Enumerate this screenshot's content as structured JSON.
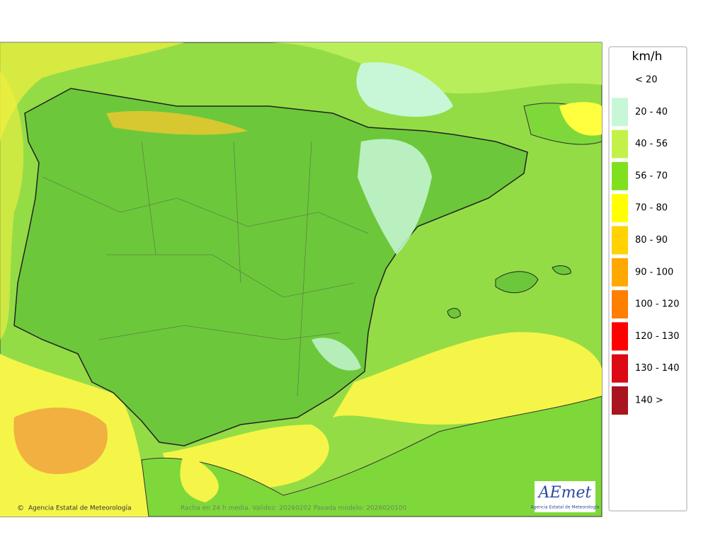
{
  "legend": {
    "title": "km/h",
    "items": [
      {
        "label": "< 20",
        "color": "#ffffff"
      },
      {
        "label": "20 - 40",
        "color": "#c8f7d8"
      },
      {
        "label": "40 - 56",
        "color": "#c2f24a"
      },
      {
        "label": "56 - 70",
        "color": "#7fe020"
      },
      {
        "label": "70 - 80",
        "color": "#ffff00"
      },
      {
        "label": "80 - 90",
        "color": "#ffd200"
      },
      {
        "label": "90 - 100",
        "color": "#ffa800"
      },
      {
        "label": "100 - 120",
        "color": "#ff7f00"
      },
      {
        "label": "120 - 130",
        "color": "#ff0000"
      },
      {
        "label": "130 - 140",
        "color": "#dc0a14"
      },
      {
        "label": "140 >",
        "color": "#a81420"
      }
    ]
  },
  "map": {
    "credit": "Agencia Estatal de Meteorología",
    "caption": "Racha en 24 h media. Validez: 20260202 Pasada modelo: 2026020100",
    "logo": "AEmet",
    "logo_subtitle": "Agencia Estatal de Meteorología"
  }
}
